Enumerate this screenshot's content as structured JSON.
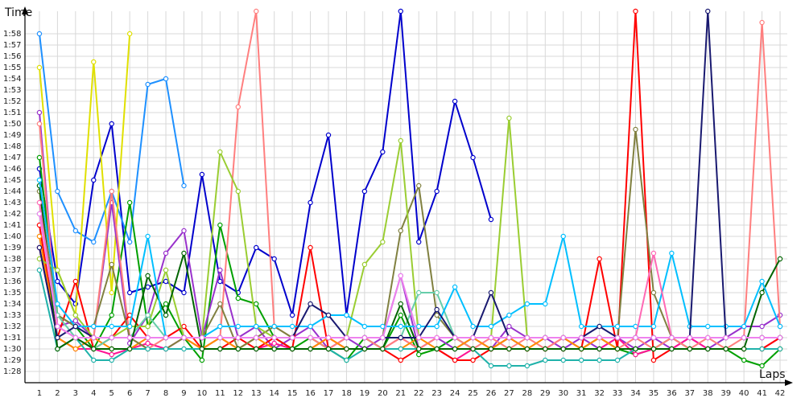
{
  "chart_data": {
    "type": "line",
    "title": "",
    "xlabel": "Laps",
    "ylabel": "Time",
    "x": [
      1,
      2,
      3,
      4,
      5,
      6,
      7,
      8,
      9,
      10,
      11,
      12,
      13,
      14,
      15,
      16,
      17,
      18,
      19,
      20,
      21,
      22,
      23,
      24,
      25,
      26,
      27,
      28,
      29,
      30,
      31,
      32,
      33,
      34,
      35,
      36,
      37,
      38,
      39,
      40,
      41,
      42
    ],
    "xlim": [
      0.2,
      42.4
    ],
    "ylim": [
      "1:27",
      "2:00"
    ],
    "y_ticks": [
      "1:28",
      "1:29",
      "1:30",
      "1:31",
      "1:32",
      "1:33",
      "1:34",
      "1:35",
      "1:36",
      "1:37",
      "1:38",
      "1:39",
      "1:40",
      "1:41",
      "1:42",
      "1:43",
      "1:44",
      "1:45",
      "1:46",
      "1:47",
      "1:48",
      "1:49",
      "1:50",
      "1:51",
      "1:52",
      "1:53",
      "1:54",
      "1:55",
      "1:56",
      "1:57",
      "1:58"
    ],
    "grid": true,
    "legend": "none",
    "series": [
      {
        "color": "#0000cc",
        "values": [
          "1:46",
          "1:36",
          "1:34",
          "1:45",
          "1:50",
          "1:35",
          "1:35.5",
          "1:36",
          "1:35",
          "1:45.5",
          "1:36",
          "1:35",
          "1:39",
          "1:38",
          "1:33",
          "1:43",
          "1:49",
          "1:33",
          "1:44",
          "1:47.5",
          "2:00",
          "1:39.5",
          "1:44",
          "1:52",
          "1:47",
          "1:41.5",
          null,
          null,
          null,
          null,
          null,
          null,
          null,
          null,
          null,
          null,
          null,
          null,
          null,
          null,
          null,
          null
        ]
      },
      {
        "color": "#1e90ff",
        "values": [
          "1:58",
          "1:44",
          "1:40.5",
          "1:39.5",
          "1:44",
          "1:39.5",
          "1:53.5",
          "1:54",
          "1:44.5",
          null,
          null,
          null,
          null,
          null,
          null,
          null,
          null,
          null,
          null,
          null,
          null,
          null,
          null,
          null,
          null,
          null,
          null,
          null,
          null,
          null,
          null,
          null,
          null,
          null,
          null,
          null,
          null,
          null,
          null,
          null,
          null,
          null
        ]
      },
      {
        "color": "#e0e000",
        "values": [
          "1:55",
          "1:37",
          "1:33",
          "1:55.5",
          "1:35",
          "1:58",
          null,
          null,
          null,
          null,
          null,
          null,
          null,
          null,
          null,
          null,
          null,
          null,
          null,
          null,
          null,
          null,
          null,
          null,
          null,
          null,
          null,
          null,
          null,
          null,
          null,
          null,
          null,
          null,
          null,
          null,
          null,
          null,
          null,
          null,
          null,
          null
        ]
      },
      {
        "color": "#00a000",
        "values": [
          "1:47",
          "1:33",
          "1:32",
          "1:30",
          "1:33",
          "1:43",
          "1:32",
          "1:34",
          "1:31",
          "1:29",
          "1:41",
          "1:34.5",
          "1:34",
          "1:31",
          "1:30",
          "1:31",
          "1:30",
          "1:29",
          "1:31",
          "1:30",
          "1:33",
          "1:29.5",
          "1:30",
          "1:31",
          "1:30",
          "1:30",
          "1:31",
          "1:30",
          "1:30",
          "1:30",
          "1:30",
          "1:31",
          "1:30",
          "1:29.5",
          "1:30",
          "1:31",
          "1:30",
          "1:30",
          "1:30",
          "1:29",
          "1:28.5",
          "1:30"
        ]
      },
      {
        "color": "#9932cc",
        "values": [
          "1:51",
          "1:32",
          "1:32.5",
          "1:31",
          "1:43",
          "1:30.5",
          "1:33",
          "1:38.5",
          "1:40.5",
          "1:31",
          "1:37",
          "1:31",
          "1:32",
          "1:30",
          "1:31",
          "1:32",
          "1:30",
          "1:31",
          "1:30",
          "1:31",
          "1:36.5",
          "1:30",
          "1:31",
          "1:30",
          "1:31",
          "1:30",
          "1:32",
          "1:31",
          "1:31",
          "1:30",
          "1:31",
          "1:30",
          "1:31",
          "1:30",
          "1:31",
          "1:30",
          "1:31",
          "1:30",
          "1:31",
          "1:32",
          "1:32",
          "1:33"
        ]
      },
      {
        "color": "#ff1493",
        "values": [
          "1:39",
          "1:31",
          "1:30",
          "1:30",
          "1:29.5",
          "1:30",
          "1:30.5",
          "1:30",
          "1:31",
          "1:30",
          "1:31",
          "1:30",
          "1:30",
          "1:30.5",
          "1:30",
          "1:30",
          "1:31",
          "1:30",
          "1:30",
          "1:30",
          "1:31",
          "1:30",
          "1:30",
          "1:29",
          "1:30",
          "1:30",
          "1:31",
          "1:30",
          "1:30",
          "1:31",
          "1:30",
          "1:30",
          "1:31",
          "1:29.5",
          "1:30",
          "1:30",
          "1:31",
          "1:30",
          "1:30",
          "1:30",
          "1:30",
          "1:31"
        ]
      },
      {
        "color": "#ff7f7f",
        "values": [
          "1:50",
          "1:32",
          "1:31",
          "1:31",
          "1:44",
          "1:31",
          "1:30",
          "1:31",
          "1:31",
          "1:30",
          "1:31",
          "1:51.5",
          "2:00",
          "1:32",
          "1:31",
          "1:31",
          "1:30",
          "1:31",
          "1:31",
          "1:30",
          "1:31",
          "1:30",
          "1:31",
          "1:31",
          "1:30",
          "1:31",
          "1:30",
          "1:31",
          "1:30",
          "1:31",
          "1:30",
          "1:31",
          "1:30",
          "1:31",
          "1:30",
          "1:31",
          "1:30",
          "1:31",
          "1:30",
          "1:31",
          "1:59",
          "1:32"
        ]
      },
      {
        "color": "#ff0000",
        "values": [
          "1:41",
          "1:31",
          "1:36",
          "1:30",
          "1:31",
          "1:33",
          "1:31",
          "1:31",
          "1:32",
          "1:30",
          "1:30",
          "1:31",
          "1:30",
          "1:31",
          "1:30",
          "1:39",
          "1:30",
          "1:30",
          "1:30",
          "1:30",
          "1:29",
          "1:30",
          "1:30",
          "1:29",
          "1:29",
          "1:30",
          "1:30",
          "1:30",
          "1:30",
          "1:30",
          "1:30",
          "1:38",
          "1:30",
          "2:00",
          "1:29",
          "1:30",
          "1:30",
          "1:30",
          "1:30",
          "1:30",
          "1:30",
          "1:31"
        ]
      },
      {
        "color": "#ff8c00",
        "values": [
          "1:40",
          "1:31",
          "1:30",
          "1:31",
          "1:30",
          "1:30",
          "1:31",
          "1:31",
          "1:31",
          "1:30",
          "1:31",
          "1:30",
          "1:31",
          "1:30",
          "1:30",
          "1:30",
          "1:31",
          "1:30",
          "1:30",
          "1:30",
          "1:30",
          "1:31",
          "1:30",
          "1:30",
          "1:31",
          "1:30",
          "1:31",
          "1:30",
          "1:31",
          "1:31",
          "1:30",
          "1:31",
          "1:30",
          "1:30",
          "1:30",
          "1:30",
          "1:30",
          "1:30",
          "1:30",
          "1:30",
          "1:30",
          "1:30"
        ]
      },
      {
        "color": "#808040",
        "values": [
          "1:44",
          "1:33",
          "1:32",
          "1:32",
          "1:37.5",
          "1:31",
          "1:30",
          "1:30",
          "1:31",
          "1:31",
          "1:34",
          "1:30",
          "1:31",
          "1:32",
          "1:31",
          "1:31",
          "1:31",
          "1:31",
          "1:31",
          "1:31",
          "1:40.5",
          "1:44.5",
          "1:33",
          "1:31",
          "1:31",
          "1:31",
          "1:31",
          "1:31",
          "1:31",
          "1:31",
          "1:31",
          "1:31",
          "1:31",
          "1:49.5",
          "1:35",
          "1:31",
          "1:31",
          "1:31",
          "1:31",
          "1:31",
          "1:31",
          "1:31"
        ]
      },
      {
        "color": "#20b2aa",
        "values": [
          "1:37",
          "1:30",
          "1:31",
          "1:29",
          "1:29",
          "1:30",
          "1:30",
          "1:30",
          "1:30",
          "1:30",
          "1:30",
          "1:30",
          "1:30",
          "1:30",
          "1:30",
          "1:30",
          "1:30",
          "1:29",
          "1:30",
          "1:30",
          "1:30",
          "1:30",
          "1:30",
          "1:30",
          "1:30",
          "1:28.5",
          "1:28.5",
          "1:28.5",
          "1:29",
          "1:29",
          "1:29",
          "1:29",
          "1:29",
          "1:30",
          "1:30",
          "1:30",
          "1:30",
          "1:30",
          "1:30",
          "1:30",
          "1:30",
          "1:30"
        ]
      },
      {
        "color": "#9acd32",
        "values": [
          "1:38",
          "1:37",
          "1:33",
          "1:31",
          "1:31",
          "1:32",
          "1:32",
          "1:37",
          "1:31",
          "1:31",
          "1:47.5",
          "1:44",
          "1:32",
          "1:31",
          "1:31",
          "1:31",
          "1:31",
          "1:31",
          "1:37.5",
          "1:39.5",
          "1:48.5",
          "1:31",
          "1:31",
          "1:31",
          "1:31",
          "1:31",
          "1:50.5",
          "1:31",
          "1:31",
          "1:31",
          "1:31",
          "1:31",
          "1:31",
          "1:31",
          "1:31",
          "1:31",
          "1:31",
          "1:31",
          "1:31",
          "1:31",
          "1:31",
          "1:31"
        ]
      },
      {
        "color": "#66cdaa",
        "values": [
          "1:42",
          "1:33",
          "1:31",
          "1:30",
          "1:31",
          "1:31",
          "1:33",
          "1:31",
          "1:31",
          "1:31",
          "1:31",
          "1:31",
          "1:31",
          "1:31",
          "1:31",
          "1:31",
          "1:31",
          "1:31",
          "1:31",
          "1:31",
          "1:31",
          "1:35",
          "1:35",
          "1:31",
          "1:31",
          "1:31",
          "1:31",
          "1:31",
          "1:31",
          "1:31",
          "1:31",
          "1:31",
          "1:31",
          "1:31",
          "1:31",
          "1:31",
          "1:31",
          "1:31",
          "1:31",
          "1:31",
          "1:31",
          "1:31"
        ]
      },
      {
        "color": "#006400",
        "values": [
          "1:44.5",
          "1:30",
          "1:31",
          "1:30",
          "1:30",
          "1:30",
          "1:36.5",
          "1:33",
          "1:38.5",
          "1:30",
          "1:30",
          "1:30",
          "1:30",
          "1:30",
          "1:30",
          "1:30",
          "1:30",
          "1:30",
          "1:30",
          "1:30",
          "1:34",
          "1:30",
          "1:30",
          "1:30",
          "1:30",
          "1:30",
          "1:30",
          "1:30",
          "1:30",
          "1:30",
          "1:30",
          "1:30",
          "1:30",
          "1:30",
          "1:30",
          "1:30",
          "1:30",
          "1:30",
          "1:30",
          "1:30",
          "1:35",
          "1:38"
        ]
      },
      {
        "color": "#00bfff",
        "values": [
          "1:45",
          "1:34",
          "1:32",
          "1:32",
          "1:32",
          "1:32",
          "1:40",
          "1:31",
          "1:31",
          "1:31",
          "1:32",
          "1:32",
          "1:32",
          "1:32",
          "1:32",
          "1:32",
          "1:33",
          "1:33",
          "1:32",
          "1:32",
          "1:32",
          "1:32",
          "1:32",
          "1:35.5",
          "1:32",
          "1:32",
          "1:33",
          "1:34",
          "1:34",
          "1:40",
          "1:32",
          "1:32",
          "1:32",
          "1:32",
          "1:32",
          "1:38.5",
          "1:32",
          "1:32",
          "1:32",
          "1:32",
          "1:36",
          "1:32"
        ]
      },
      {
        "color": "#ff69b4",
        "values": [
          "1:43",
          "1:32",
          "1:31",
          "1:31",
          "1:31",
          "1:31",
          "1:31",
          "1:31",
          "1:31",
          "1:31",
          "1:31",
          "1:31",
          "1:31",
          "1:31",
          "1:31",
          "1:31",
          "1:31",
          "1:31",
          "1:31",
          "1:31",
          "1:31",
          "1:31",
          "1:31",
          "1:31",
          "1:31",
          "1:31",
          "1:31",
          "1:31",
          "1:31",
          "1:31",
          "1:31",
          "1:31",
          "1:31",
          "1:31",
          "1:38.5",
          "1:31",
          "1:31",
          "1:31",
          "1:31",
          "1:31",
          "1:31",
          "1:31"
        ]
      },
      {
        "color": "#191970",
        "values": [
          "1:39",
          "1:31",
          "1:32",
          "1:31",
          "1:31",
          "1:31",
          "1:31",
          "1:31",
          "1:31",
          "1:31",
          "1:31",
          "1:31",
          "1:31",
          "1:31",
          "1:31",
          "1:34",
          "1:33",
          "1:31",
          "1:31",
          "1:31",
          "1:31",
          "1:31",
          "1:33.5",
          "1:31",
          "1:31",
          "1:35",
          "1:31",
          "1:31",
          "1:31",
          "1:31",
          "1:31",
          "1:32",
          "1:31",
          "1:31",
          "1:31",
          "1:31",
          "1:31",
          "2:00",
          "1:31",
          "1:31",
          "1:31",
          "1:31"
        ]
      },
      {
        "color": "#ee82ee",
        "values": [
          "1:42",
          "1:32",
          "1:31",
          "1:31",
          "1:31",
          "1:31",
          "1:31",
          "1:31",
          "1:31",
          "1:31",
          "1:31",
          "1:31",
          "1:31",
          "1:31",
          "1:31",
          "1:31",
          "1:31",
          "1:31",
          "1:31",
          "1:31",
          "1:36.5",
          "1:31",
          "1:31",
          "1:31",
          "1:31",
          "1:31",
          "1:31",
          "1:31",
          "1:31",
          "1:31",
          "1:31",
          "1:31",
          "1:31",
          "1:31",
          "1:31",
          "1:31",
          "1:31",
          "1:31",
          "1:31",
          "1:31",
          "1:31",
          "1:31"
        ]
      }
    ]
  }
}
